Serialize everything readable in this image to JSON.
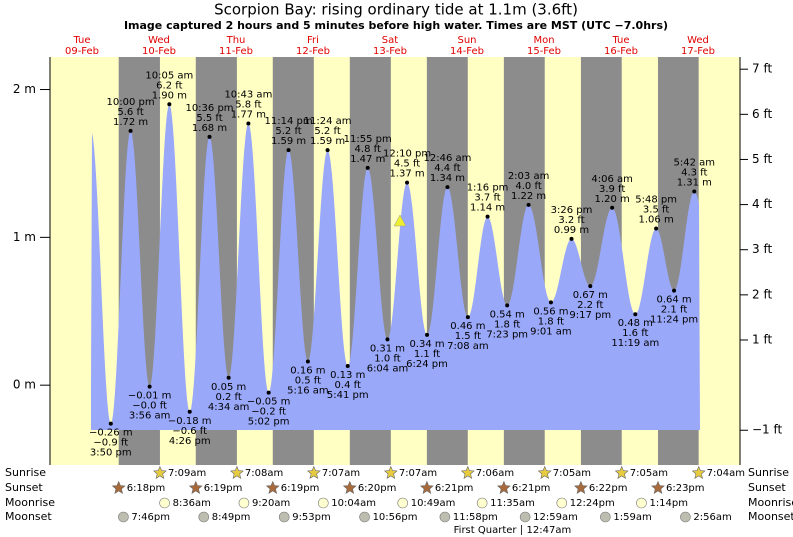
{
  "chart_data": {
    "type": "area",
    "title": "Scorpion Bay: rising  ordinary tide at 1.1m (3.6ft)",
    "subtitle": "Image captured 2 hours and 5 minutes before high water. Times are MST (UTC −7.0hrs)",
    "ylim": [
      -0.54,
      2.22
    ],
    "yticks": [
      {
        "value": 0,
        "label": "0 m"
      },
      {
        "value": 1,
        "label": "1 m"
      },
      {
        "value": 2,
        "label": "2 m"
      }
    ],
    "y2lim": [
      -1.77,
      7.27
    ],
    "y2ticks": [
      {
        "value": -1,
        "label": "−1 ft"
      },
      {
        "value": 1,
        "label": "1 ft"
      },
      {
        "value": 2,
        "label": "2 ft"
      },
      {
        "value": 3,
        "label": "3 ft"
      },
      {
        "value": 4,
        "label": "4 ft"
      },
      {
        "value": 5,
        "label": "5 ft"
      },
      {
        "value": 6,
        "label": "6 ft"
      },
      {
        "value": 7,
        "label": "7 ft"
      }
    ],
    "colors": {
      "day": "#ffffc4",
      "night": "#8c8c8c",
      "tide": "#9aa8fa",
      "day_label": "#e00000",
      "sunrise": "#e8cc40",
      "sunset": "#a86a3a",
      "moonrise": "#ffffd0",
      "moonset": "#bdbdb0"
    },
    "row_labels": [
      "Sunrise",
      "Sunset",
      "Moonrise",
      "Moonset"
    ],
    "moon_phase": {
      "name": "First Quarter",
      "time": "12:47am"
    },
    "days": [
      {
        "weekday": "Tue",
        "date": "09-Feb",
        "sunrise": null,
        "sunset": "6:18pm",
        "moonrise": null,
        "moonset": "7:46pm",
        "tides": [
          {
            "time": "3:50 pm",
            "m": -0.26,
            "m_label": "−0.26 m",
            "ft_label": "−0.9 ft"
          },
          {
            "time": "10:00 pm",
            "m": 1.72,
            "m_label": "1.72 m",
            "ft_label": "5.6 ft"
          }
        ]
      },
      {
        "weekday": "Wed",
        "date": "10-Feb",
        "sunrise": "7:09am",
        "sunset": "6:19pm",
        "moonrise": "8:36am",
        "moonset": "8:49pm",
        "tides": [
          {
            "time": "3:56 am",
            "m": -0.01,
            "m_label": "−0.01 m",
            "ft_label": "−0.0 ft"
          },
          {
            "time": "10:05 am",
            "m": 1.9,
            "m_label": "1.90 m",
            "ft_label": "6.2 ft"
          },
          {
            "time": "4:26 pm",
            "m": -0.18,
            "m_label": "−0.18 m",
            "ft_label": "−0.6 ft"
          },
          {
            "time": "10:36 pm",
            "m": 1.68,
            "m_label": "1.68 m",
            "ft_label": "5.5 ft"
          }
        ]
      },
      {
        "weekday": "Thu",
        "date": "11-Feb",
        "sunrise": "7:08am",
        "sunset": "6:19pm",
        "moonrise": "9:20am",
        "moonset": "9:53pm",
        "tides": [
          {
            "time": "4:34 am",
            "m": 0.05,
            "m_label": "0.05 m",
            "ft_label": "0.2 ft"
          },
          {
            "time": "10:43 am",
            "m": 1.77,
            "m_label": "1.77 m",
            "ft_label": "5.8 ft"
          },
          {
            "time": "5:02 pm",
            "m": -0.05,
            "m_label": "−0.05 m",
            "ft_label": "−0.2 ft"
          },
          {
            "time": "11:14 pm",
            "m": 1.59,
            "m_label": "1.59 m",
            "ft_label": "5.2 ft"
          }
        ]
      },
      {
        "weekday": "Fri",
        "date": "12-Feb",
        "sunrise": "7:07am",
        "sunset": "6:20pm",
        "moonrise": "10:04am",
        "moonset": "10:56pm",
        "tides": [
          {
            "time": "5:16 am",
            "m": 0.16,
            "m_label": "0.16 m",
            "ft_label": "0.5 ft"
          },
          {
            "time": "11:24 am",
            "m": 1.59,
            "m_label": "1.59 m",
            "ft_label": "5.2 ft"
          },
          {
            "time": "5:41 pm",
            "m": 0.13,
            "m_label": "0.13 m",
            "ft_label": "0.4 ft"
          },
          {
            "time": "11:55 pm",
            "m": 1.47,
            "m_label": "1.47 m",
            "ft_label": "4.8 ft"
          }
        ]
      },
      {
        "weekday": "Sat",
        "date": "13-Feb",
        "sunrise": "7:07am",
        "sunset": "6:21pm",
        "moonrise": "10:49am",
        "moonset": "11:58pm",
        "tides": [
          {
            "time": "6:04 am",
            "m": 0.31,
            "m_label": "0.31 m",
            "ft_label": "1.0 ft"
          },
          {
            "time": "12:10 pm",
            "m": 1.37,
            "m_label": "1.37 m",
            "ft_label": "4.5 ft"
          },
          {
            "time": "6:24 pm",
            "m": 0.34,
            "m_label": "0.34 m",
            "ft_label": "1.1 ft"
          }
        ]
      },
      {
        "weekday": "Sun",
        "date": "14-Feb",
        "sunrise": "7:06am",
        "sunset": "6:21pm",
        "moonrise": "11:35am",
        "moonset": null,
        "tides": [
          {
            "time": "12:46 am",
            "m": 1.34,
            "m_label": "1.34 m",
            "ft_label": "4.4 ft"
          },
          {
            "time": "7:08 am",
            "m": 0.46,
            "m_label": "0.46 m",
            "ft_label": "1.5 ft"
          },
          {
            "time": "1:16 pm",
            "m": 1.14,
            "m_label": "1.14 m",
            "ft_label": "3.7 ft"
          },
          {
            "time": "7:23 pm",
            "m": 0.54,
            "m_label": "0.54 m",
            "ft_label": "1.8 ft"
          }
        ]
      },
      {
        "weekday": "Mon",
        "date": "15-Feb",
        "sunrise": "7:05am",
        "sunset": "6:22pm",
        "moonrise": "12:24pm",
        "moonset": "12:59am",
        "tides": [
          {
            "time": "2:03 am",
            "m": 1.22,
            "m_label": "1.22 m",
            "ft_label": "4.0 ft"
          },
          {
            "time": "9:01 am",
            "m": 0.56,
            "m_label": "0.56 m",
            "ft_label": "1.8 ft"
          },
          {
            "time": "3:26 pm",
            "m": 0.99,
            "m_label": "0.99 m",
            "ft_label": "3.2 ft"
          },
          {
            "time": "9:17 pm",
            "m": 0.67,
            "m_label": "0.67 m",
            "ft_label": "2.2 ft"
          }
        ]
      },
      {
        "weekday": "Tue",
        "date": "16-Feb",
        "sunrise": "7:05am",
        "sunset": "6:23pm",
        "moonrise": "1:14pm",
        "moonset": "1:59am",
        "tides": [
          {
            "time": "4:06 am",
            "m": 1.2,
            "m_label": "1.20 m",
            "ft_label": "3.9 ft"
          },
          {
            "time": "11:19 am",
            "m": 0.48,
            "m_label": "0.48 m",
            "ft_label": "1.6 ft"
          },
          {
            "time": "5:48 pm",
            "m": 1.06,
            "m_label": "1.06 m",
            "ft_label": "3.5 ft"
          },
          {
            "time": "11:24 pm",
            "m": 0.64,
            "m_label": "0.64 m",
            "ft_label": "2.1 ft"
          }
        ]
      },
      {
        "weekday": "Wed",
        "date": "17-Feb",
        "sunrise": "7:04am",
        "sunset": null,
        "moonrise": null,
        "moonset": "2:56am",
        "tides": [
          {
            "time": "5:42 am",
            "m": 1.31,
            "m_label": "1.31 m",
            "ft_label": "4.3 ft"
          }
        ]
      }
    ]
  }
}
